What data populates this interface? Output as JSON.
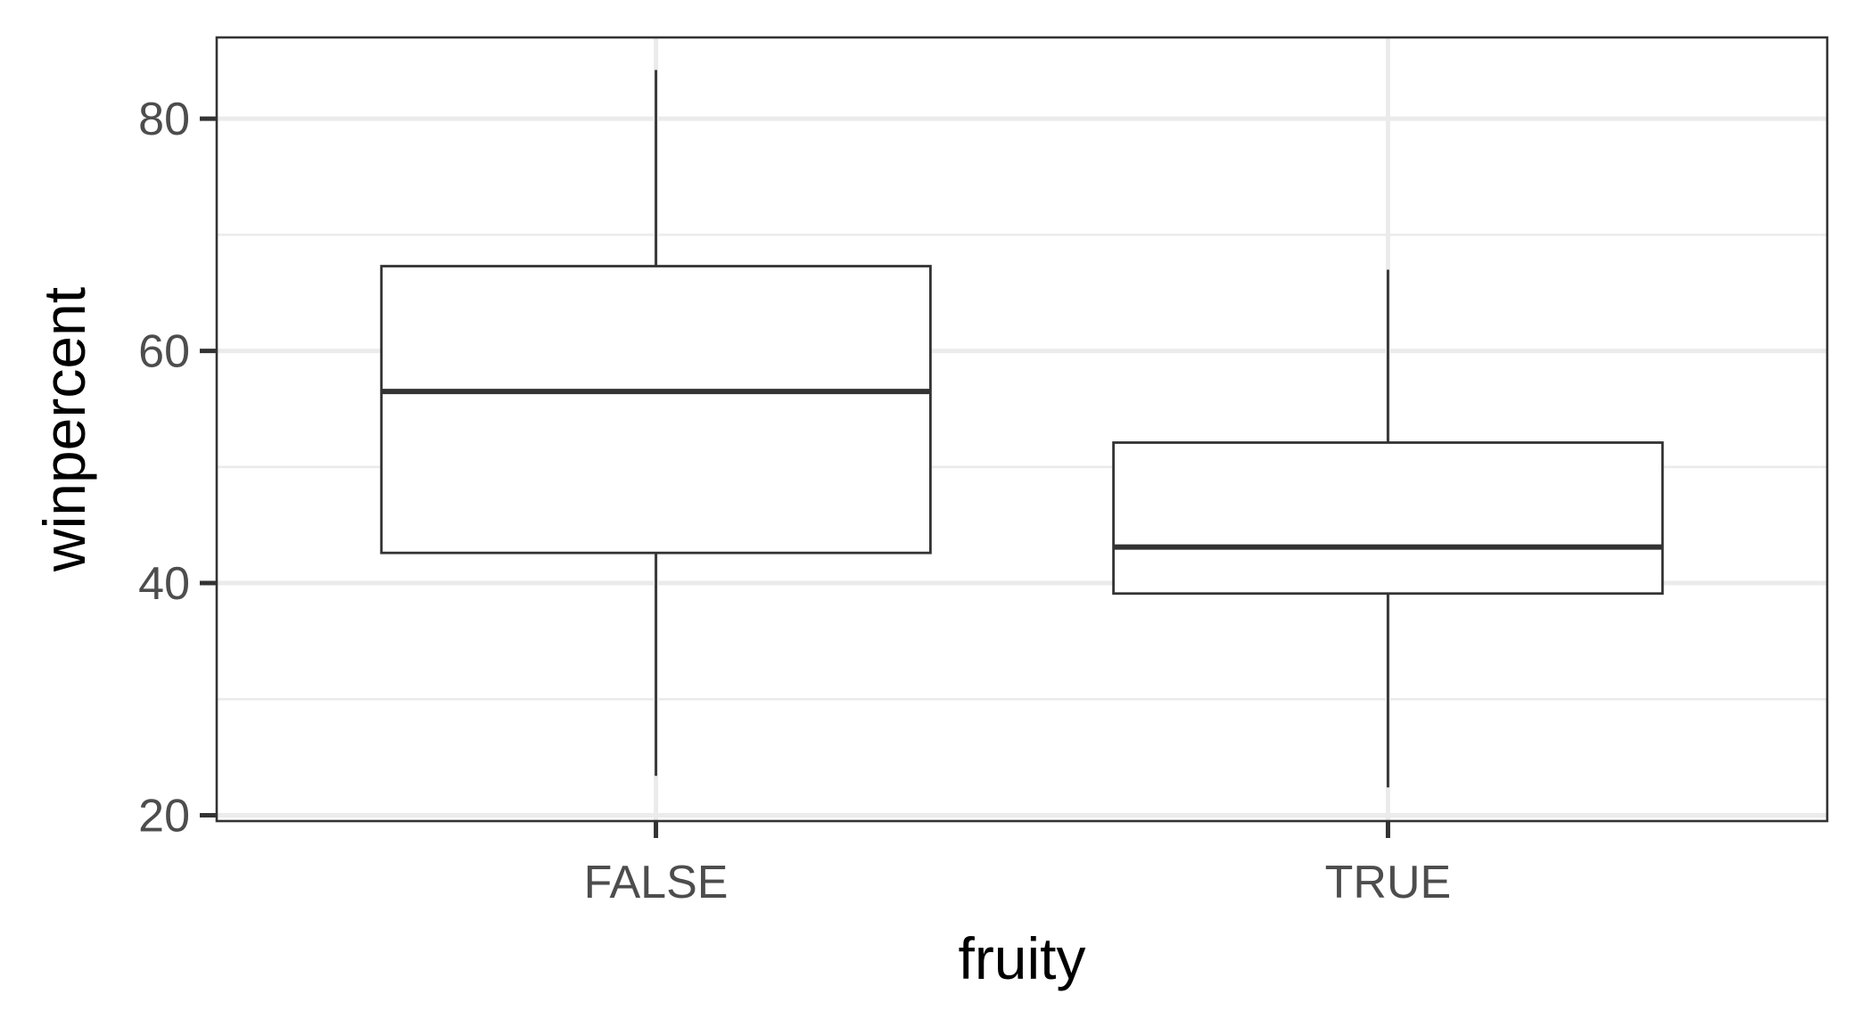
{
  "chart_data": {
    "type": "boxplot",
    "xlabel": "fruity",
    "ylabel": "winpercent",
    "ylim": [
      19.5,
      87
    ],
    "y_ticks": [
      20,
      40,
      60,
      80
    ],
    "y_tick_labels": [
      "20",
      "40",
      "60",
      "80"
    ],
    "categories": [
      "FALSE",
      "TRUE"
    ],
    "boxes": [
      {
        "category": "FALSE",
        "whisker_low": 23.4,
        "q1": 42.6,
        "median": 56.5,
        "q3": 67.3,
        "whisker_high": 84.2
      },
      {
        "category": "TRUE",
        "whisker_low": 22.4,
        "q1": 39.1,
        "median": 43.1,
        "q3": 52.1,
        "whisker_high": 67.0
      }
    ],
    "grid": true,
    "colors": {
      "box_fill": "#ffffff",
      "box_stroke": "#333333",
      "grid": "#ebebeb",
      "background": "#ffffff"
    }
  }
}
